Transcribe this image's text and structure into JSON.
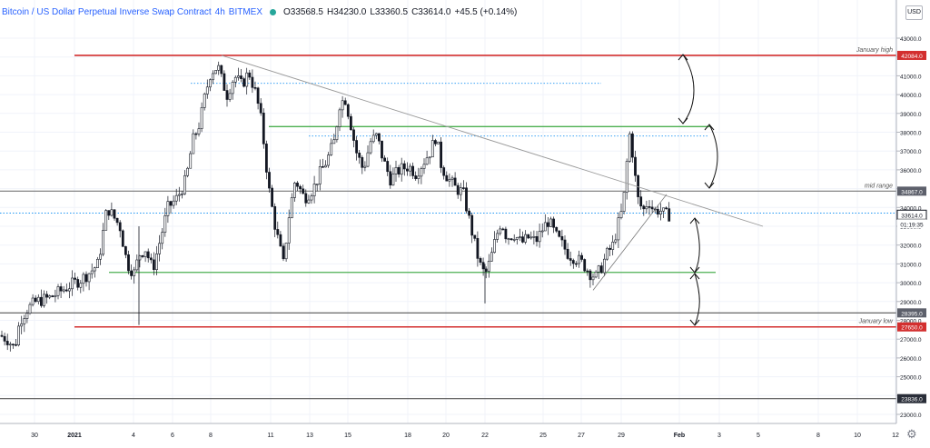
{
  "header": {
    "symbol": "Bitcoin / US Dollar Perpetual Inverse Swap Contract",
    "interval": "4h",
    "exchange": "BITMEX",
    "open": "O33568.5",
    "high": "H34230.0",
    "low": "L33360.5",
    "close": "C33614.0",
    "change": "+45.5 (+0.14%)",
    "currency": "USD"
  },
  "chart_data": {
    "type": "candlestick",
    "ylim": [
      22000,
      43500
    ],
    "y_ticks": [
      23000,
      24000,
      25000,
      26000,
      27000,
      28000,
      29000,
      30000,
      31000,
      32000,
      33000,
      34000,
      35000,
      36000,
      37000,
      38000,
      39000,
      40000,
      41000,
      42000,
      43000
    ],
    "x_ticks": [
      "30",
      "2021",
      "4",
      "6",
      "8",
      "11",
      "13",
      "15",
      "18",
      "20",
      "22",
      "25",
      "27",
      "29",
      "Feb",
      "3",
      "5",
      "8",
      "10",
      "12"
    ],
    "price_tags": [
      {
        "value": "42084.0",
        "kind": "red"
      },
      {
        "value": "34867.0",
        "kind": "grey"
      },
      {
        "value": "33614.0",
        "kind": "current"
      },
      {
        "value": "01:19:35",
        "kind": "timer"
      },
      {
        "value": "28395.0",
        "kind": "grey"
      },
      {
        "value": "27650.0",
        "kind": "red"
      },
      {
        "value": "23836.0",
        "kind": "dark"
      }
    ],
    "levels": [
      {
        "name": "January high",
        "price": 42084,
        "color": "#d32f2f"
      },
      {
        "name": "mid range",
        "price": 34867,
        "color": "#777777"
      },
      {
        "name": "",
        "price": 28395,
        "color": "#555555"
      },
      {
        "name": "January low",
        "price": 27650,
        "color": "#d32f2f"
      },
      {
        "name": "",
        "price": 23836,
        "color": "#555555"
      }
    ],
    "green_levels": [
      38300,
      30550
    ],
    "dotted_levels": [
      40600,
      37800,
      33700
    ],
    "close_anchors": [
      [
        0,
        27200
      ],
      [
        8,
        27000
      ],
      [
        16,
        26500
      ],
      [
        22,
        28000
      ],
      [
        30,
        28600
      ],
      [
        40,
        29000
      ],
      [
        55,
        29200
      ],
      [
        65,
        29500
      ],
      [
        75,
        29800
      ],
      [
        90,
        30200
      ],
      [
        100,
        30600
      ],
      [
        108,
        31000
      ],
      [
        113,
        32500
      ],
      [
        118,
        34000
      ],
      [
        125,
        33500
      ],
      [
        132,
        33000
      ],
      [
        140,
        31000
      ],
      [
        148,
        30500
      ],
      [
        153,
        31500
      ],
      [
        160,
        31800
      ],
      [
        168,
        30700
      ],
      [
        175,
        32000
      ],
      [
        185,
        34000
      ],
      [
        195,
        34500
      ],
      [
        205,
        35500
      ],
      [
        212,
        37500
      ],
      [
        220,
        38500
      ],
      [
        226,
        40000
      ],
      [
        232,
        41200
      ],
      [
        240,
        41500
      ],
      [
        244,
        40800
      ],
      [
        250,
        40000
      ],
      [
        258,
        41000
      ],
      [
        266,
        40500
      ],
      [
        274,
        41200
      ],
      [
        282,
        40000
      ],
      [
        288,
        38500
      ],
      [
        296,
        35000
      ],
      [
        303,
        33000
      ],
      [
        312,
        31000
      ],
      [
        318,
        33500
      ],
      [
        325,
        35500
      ],
      [
        335,
        34500
      ],
      [
        345,
        35000
      ],
      [
        352,
        35800
      ],
      [
        360,
        36500
      ],
      [
        368,
        37500
      ],
      [
        374,
        39500
      ],
      [
        380,
        39800
      ],
      [
        386,
        38500
      ],
      [
        392,
        37000
      ],
      [
        400,
        36000
      ],
      [
        408,
        37500
      ],
      [
        415,
        37800
      ],
      [
        422,
        36500
      ],
      [
        430,
        35500
      ],
      [
        440,
        36000
      ],
      [
        450,
        36200
      ],
      [
        458,
        35800
      ],
      [
        466,
        36400
      ],
      [
        474,
        37000
      ],
      [
        480,
        37800
      ],
      [
        486,
        36200
      ],
      [
        494,
        35500
      ],
      [
        502,
        35000
      ],
      [
        510,
        34800
      ],
      [
        516,
        33500
      ],
      [
        522,
        32200
      ],
      [
        528,
        31000
      ],
      [
        534,
        30400
      ],
      [
        540,
        31200
      ],
      [
        546,
        32400
      ],
      [
        552,
        33300
      ],
      [
        558,
        32400
      ],
      [
        566,
        32600
      ],
      [
        574,
        32100
      ],
      [
        582,
        32400
      ],
      [
        590,
        32200
      ],
      [
        598,
        32900
      ],
      [
        604,
        33300
      ],
      [
        612,
        32500
      ],
      [
        618,
        32100
      ],
      [
        626,
        31500
      ],
      [
        634,
        31300
      ],
      [
        642,
        31000
      ],
      [
        650,
        30500
      ],
      [
        656,
        30300
      ],
      [
        662,
        30800
      ],
      [
        668,
        31500
      ],
      [
        675,
        32000
      ],
      [
        680,
        33000
      ],
      [
        686,
        34000
      ],
      [
        690,
        36300
      ],
      [
        694,
        38200
      ],
      [
        697,
        36600
      ],
      [
        702,
        34500
      ],
      [
        708,
        33800
      ],
      [
        714,
        34400
      ],
      [
        720,
        33800
      ],
      [
        726,
        33900
      ],
      [
        732,
        33600
      ],
      [
        738,
        33614
      ]
    ]
  }
}
